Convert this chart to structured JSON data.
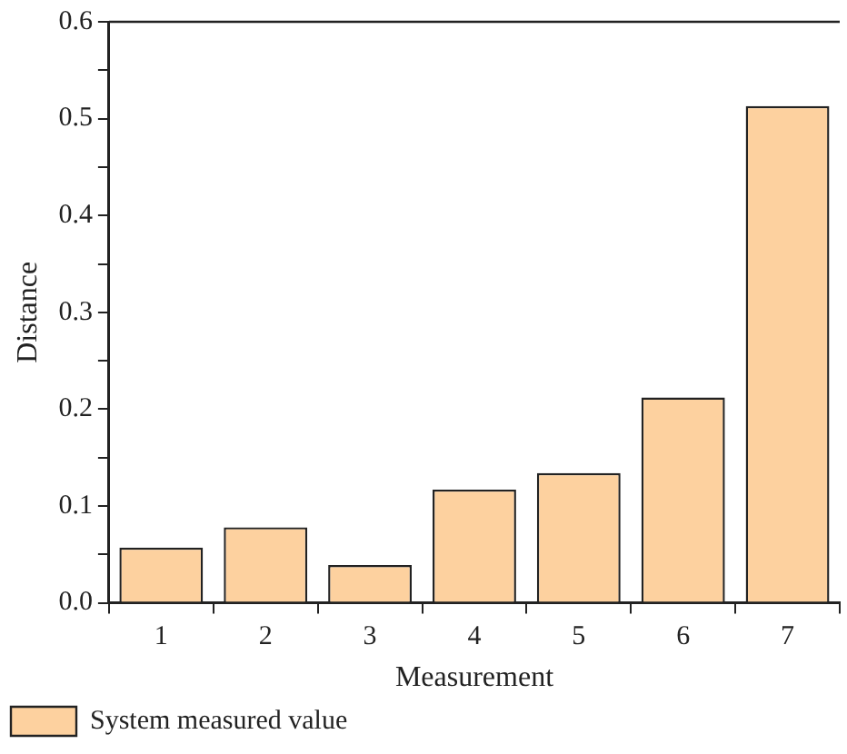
{
  "chart_data": {
    "type": "bar",
    "xlabel": "Measurement",
    "ylabel": "Distance",
    "categories": [
      "1",
      "2",
      "3",
      "4",
      "5",
      "6",
      "7"
    ],
    "series": [
      {
        "name": "System measured value",
        "color": "#fdd19f",
        "values": [
          0.057,
          0.078,
          0.039,
          0.117,
          0.134,
          0.212,
          0.513
        ]
      }
    ],
    "ylim": [
      0,
      0.6
    ],
    "yticks": [
      {
        "value": 0,
        "label": "0.0"
      },
      {
        "value": 0.05,
        "label": null
      },
      0.1,
      {
        "value": 0.15,
        "label": null
      },
      0.2,
      {
        "value": 0.25,
        "label": null
      },
      0.3,
      {
        "value": 0.35,
        "label": null
      },
      0.4,
      {
        "value": 0.45,
        "label": null
      },
      0.5,
      {
        "value": 0.55,
        "label": null
      },
      0.6
    ],
    "grid": false,
    "legend": "bottom left"
  }
}
